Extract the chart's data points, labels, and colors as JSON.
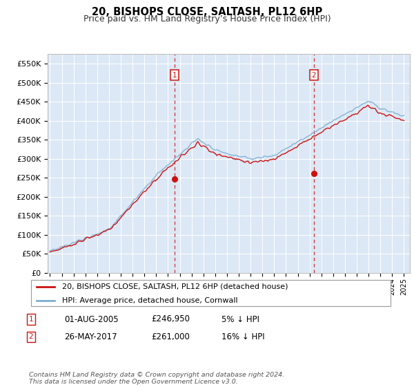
{
  "title": "20, BISHOPS CLOSE, SALTASH, PL12 6HP",
  "subtitle": "Price paid vs. HM Land Registry’s House Price Index (HPI)",
  "ylim": [
    0,
    575000
  ],
  "ytick_labels": [
    "£0",
    "£50K",
    "£100K",
    "£150K",
    "£200K",
    "£250K",
    "£300K",
    "£350K",
    "£400K",
    "£450K",
    "£500K",
    "£550K"
  ],
  "bg_color": "#dce8f5",
  "hpi_color": "#7bafd4",
  "price_color": "#cc1111",
  "sale1_x": 2005.583,
  "sale1_price": 246950,
  "sale2_x": 2017.375,
  "sale2_price": 261000,
  "legend_line1": "20, BISHOPS CLOSE, SALTASH, PL12 6HP (detached house)",
  "legend_line2": "HPI: Average price, detached house, Cornwall",
  "table_row1": [
    "1",
    "01-AUG-2005",
    "£246,950",
    "5% ↓ HPI"
  ],
  "table_row2": [
    "2",
    "26-MAY-2017",
    "£261,000",
    "16% ↓ HPI"
  ],
  "footer": "Contains HM Land Registry data © Crown copyright and database right 2024.\nThis data is licensed under the Open Government Licence v3.0."
}
